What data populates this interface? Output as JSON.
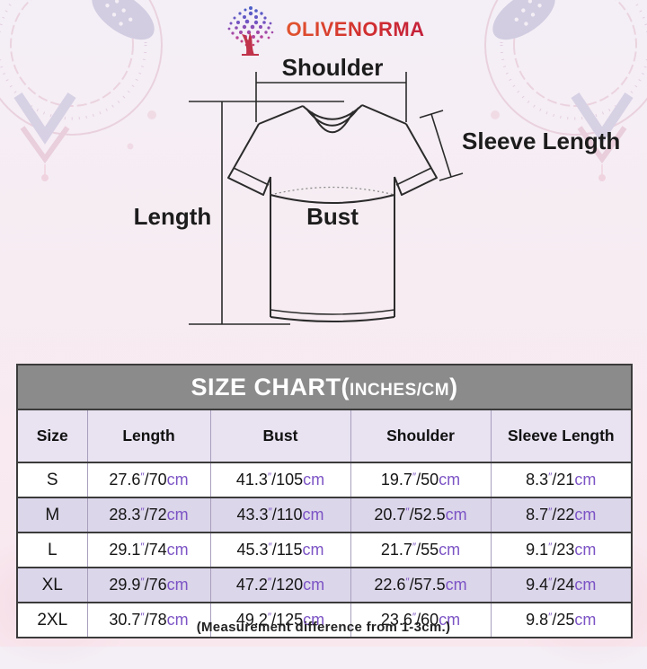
{
  "brand": {
    "name": "OLIVENORMA"
  },
  "diagram": {
    "shoulder_label": "Shoulder",
    "sleeve_length_label": "Sleeve Length",
    "length_label": "Length",
    "bust_label": "Bust"
  },
  "size_chart": {
    "title_main": "SIZE CHART(",
    "title_unit": "INCHES/CM",
    "title_close": ")",
    "columns": [
      "Size",
      "Length",
      "Bust",
      "Shoulder",
      "Sleeve Length"
    ],
    "units": {
      "inch_mark": "″",
      "cm_label": "cm"
    },
    "rows": [
      {
        "size": "S",
        "measurements": [
          {
            "in": "27.6",
            "cm": "70"
          },
          {
            "in": "41.3",
            "cm": "105"
          },
          {
            "in": "19.7",
            "cm": "50"
          },
          {
            "in": "8.3",
            "cm": "21"
          }
        ]
      },
      {
        "size": "M",
        "measurements": [
          {
            "in": "28.3",
            "cm": "72"
          },
          {
            "in": "43.3",
            "cm": "110"
          },
          {
            "in": "20.7",
            "cm": "52.5"
          },
          {
            "in": "8.7",
            "cm": "22"
          }
        ]
      },
      {
        "size": "L",
        "measurements": [
          {
            "in": "29.1",
            "cm": "74"
          },
          {
            "in": "45.3",
            "cm": "115"
          },
          {
            "in": "21.7",
            "cm": "55"
          },
          {
            "in": "9.1",
            "cm": "23"
          }
        ]
      },
      {
        "size": "XL",
        "measurements": [
          {
            "in": "29.9",
            "cm": "76"
          },
          {
            "in": "47.2",
            "cm": "120"
          },
          {
            "in": "22.6",
            "cm": "57.5"
          },
          {
            "in": "9.4",
            "cm": "24"
          }
        ]
      },
      {
        "size": "2XL",
        "measurements": [
          {
            "in": "30.7",
            "cm": "78"
          },
          {
            "in": "49.2",
            "cm": "125"
          },
          {
            "in": "23.6",
            "cm": "60"
          },
          {
            "in": "9.8",
            "cm": "25"
          }
        ]
      }
    ]
  },
  "footer": {
    "note": "(Measurement difference from 1-3cm.)"
  },
  "colors": {
    "accent_purple": "#7c54c5",
    "title_bar_gray": "#8b8b8b",
    "row_lavender": "#dcd6ea",
    "header_lavender": "#e8e2f1",
    "brand_red": "#d2302f",
    "line_dark": "#2b2b2b",
    "background_pink": "#f8e9ef"
  }
}
